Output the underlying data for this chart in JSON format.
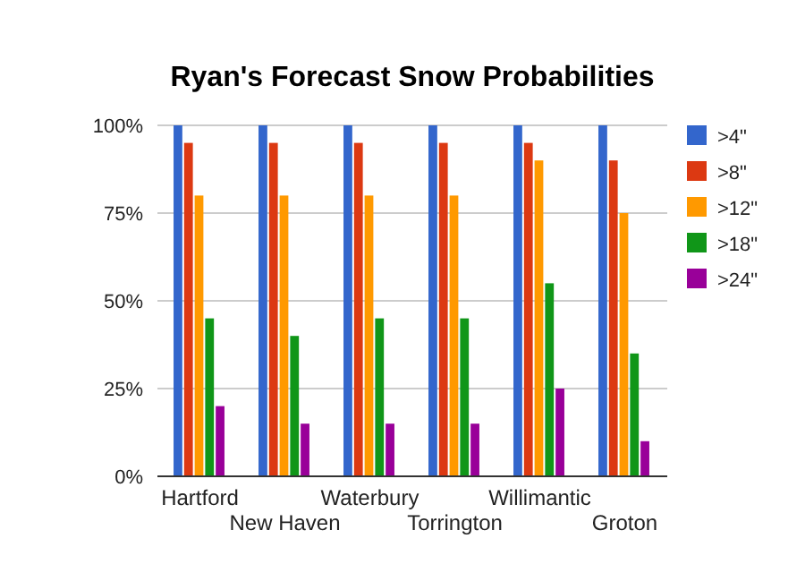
{
  "chart_data": {
    "type": "bar",
    "title": "Ryan's Forecast Snow Probabilities",
    "categories": [
      "Hartford",
      "New Haven",
      "Waterbury",
      "Torrington",
      "Willimantic",
      "Groton"
    ],
    "series": [
      {
        "name": ">4\"",
        "color": "#3366cc",
        "values": [
          100,
          100,
          100,
          100,
          100,
          100
        ]
      },
      {
        "name": ">8\"",
        "color": "#dc3912",
        "values": [
          95,
          95,
          95,
          95,
          95,
          90
        ]
      },
      {
        "name": ">12\"",
        "color": "#ff9900",
        "values": [
          80,
          80,
          80,
          80,
          90,
          75
        ]
      },
      {
        "name": ">18\"",
        "color": "#109618",
        "values": [
          45,
          40,
          45,
          45,
          55,
          35
        ]
      },
      {
        "name": ">24\"",
        "color": "#990099",
        "values": [
          20,
          15,
          15,
          15,
          25,
          10
        ]
      }
    ],
    "ylim": [
      0,
      100
    ],
    "yticks": [
      {
        "value": 0,
        "label": "0%"
      },
      {
        "value": 25,
        "label": "25%"
      },
      {
        "value": 50,
        "label": "50%"
      },
      {
        "value": 75,
        "label": "75%"
      },
      {
        "value": 100,
        "label": "100%"
      }
    ],
    "grid": "y",
    "legend": "right"
  }
}
